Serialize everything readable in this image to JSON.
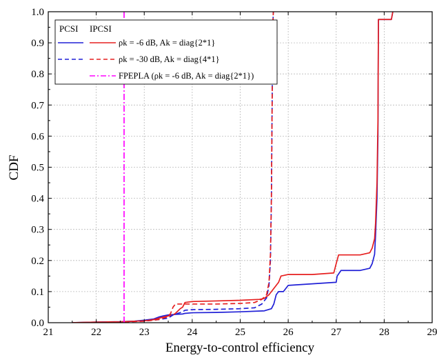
{
  "chart_data": {
    "type": "line",
    "title": "",
    "xlabel": "Energy-to-control efficiency",
    "ylabel": "CDF",
    "xlim": [
      21,
      29
    ],
    "ylim": [
      0,
      1.0
    ],
    "xticks": [
      "21",
      "22",
      "23",
      "24",
      "25",
      "26",
      "27",
      "28",
      "29"
    ],
    "yticks": [
      "0.0",
      "0.1",
      "0.2",
      "0.3",
      "0.4",
      "0.5",
      "0.6",
      "0.7",
      "0.8",
      "0.9",
      "1.0"
    ],
    "grid": true,
    "legend_position": "top-left",
    "legend": {
      "col_pcsi": "PCSI",
      "col_ipcsi": "IPCSI",
      "entries": [
        {
          "label": "ρk = -6 dB, Ak = diag{2*1}",
          "pcsi_color": "#1f1fd6",
          "ipcsi_color": "#e61e1e"
        },
        {
          "label": "ρk = -30 dB, Ak = diag{4*1}",
          "pcsi_color": "#1f1fd6",
          "ipcsi_color": "#e61e1e"
        },
        {
          "label": "FPEPLA (ρk = -6 dB, Ak = diag{2*1})",
          "color": "#ff00ff"
        }
      ]
    },
    "series": [
      {
        "color": "#1f1fd6",
        "style": "solid",
        "x": [
          21.5,
          22.0,
          22.5,
          22.8,
          23.0,
          23.2,
          23.3,
          23.4,
          23.5,
          23.6,
          23.7,
          23.8,
          23.85,
          24.0,
          24.5,
          25.0,
          25.5,
          25.65,
          25.7,
          25.75,
          25.8,
          25.9,
          26.0,
          26.5,
          27.0,
          27.02,
          27.1,
          27.5,
          27.7,
          27.75,
          27.8,
          27.82,
          27.85,
          27.87,
          27.88,
          28.0,
          28.15,
          28.18
        ],
        "y": [
          0.0,
          0.002,
          0.003,
          0.005,
          0.008,
          0.012,
          0.018,
          0.022,
          0.025,
          0.026,
          0.027,
          0.028,
          0.03,
          0.032,
          0.033,
          0.035,
          0.038,
          0.045,
          0.06,
          0.09,
          0.1,
          0.1,
          0.12,
          0.125,
          0.13,
          0.15,
          0.168,
          0.168,
          0.175,
          0.19,
          0.22,
          0.28,
          0.4,
          0.6,
          0.975,
          0.975,
          0.975,
          1.0
        ]
      },
      {
        "color": "#e61e1e",
        "style": "solid",
        "x": [
          21.5,
          22.0,
          22.5,
          23.0,
          23.2,
          23.4,
          23.6,
          23.65,
          23.75,
          23.8,
          23.85,
          24.0,
          24.5,
          25.0,
          25.4,
          25.5,
          25.6,
          25.65,
          25.7,
          25.75,
          25.8,
          25.85,
          26.0,
          26.5,
          26.95,
          27.0,
          27.05,
          27.5,
          27.7,
          27.75,
          27.8,
          27.82,
          27.85,
          27.87,
          27.88,
          28.0,
          28.15,
          28.18
        ],
        "y": [
          0.0,
          0.002,
          0.003,
          0.006,
          0.01,
          0.018,
          0.025,
          0.03,
          0.045,
          0.05,
          0.065,
          0.068,
          0.07,
          0.072,
          0.075,
          0.078,
          0.09,
          0.1,
          0.11,
          0.12,
          0.13,
          0.15,
          0.155,
          0.155,
          0.16,
          0.19,
          0.218,
          0.218,
          0.225,
          0.24,
          0.27,
          0.32,
          0.45,
          0.65,
          0.975,
          0.975,
          0.975,
          1.0
        ]
      },
      {
        "color": "#1f1fd6",
        "style": "dashed",
        "x": [
          21.8,
          22.5,
          23.0,
          23.3,
          23.5,
          23.6,
          23.7,
          23.8,
          23.85,
          24.0,
          24.5,
          25.0,
          25.3,
          25.45,
          25.55,
          25.6,
          25.63,
          25.65,
          25.66,
          25.67,
          25.68,
          25.69
        ],
        "y": [
          0.0,
          0.002,
          0.005,
          0.01,
          0.015,
          0.025,
          0.03,
          0.035,
          0.04,
          0.042,
          0.043,
          0.045,
          0.048,
          0.06,
          0.08,
          0.12,
          0.2,
          0.4,
          0.6,
          0.8,
          0.95,
          1.0
        ]
      },
      {
        "color": "#e61e1e",
        "style": "dashed",
        "x": [
          21.8,
          22.5,
          23.0,
          23.3,
          23.5,
          23.55,
          23.6,
          23.65,
          23.7,
          24.0,
          24.5,
          25.0,
          25.3,
          25.45,
          25.55,
          25.6,
          25.63,
          25.65,
          25.66,
          25.67,
          25.68,
          25.69
        ],
        "y": [
          0.0,
          0.002,
          0.005,
          0.01,
          0.02,
          0.03,
          0.05,
          0.06,
          0.06,
          0.06,
          0.06,
          0.062,
          0.065,
          0.075,
          0.09,
          0.13,
          0.22,
          0.4,
          0.6,
          0.8,
          0.95,
          1.0
        ]
      },
      {
        "color": "#ff00ff",
        "style": "dashdot",
        "x": [
          22.58,
          22.58
        ],
        "y": [
          0.0,
          1.0
        ]
      }
    ]
  }
}
